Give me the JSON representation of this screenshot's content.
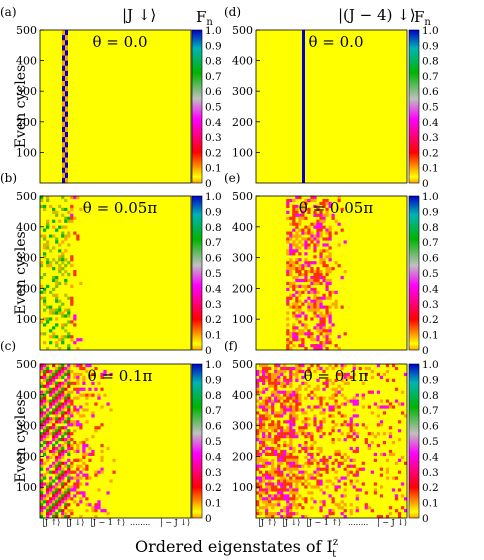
{
  "figure": {
    "xlabel": "Ordered eigenstates of I",
    "xlabel_sup": "z",
    "xlabel_sub": "t",
    "colorbar_label": "F",
    "colorbar_label_sub": "n",
    "left_title": "|J ↓⟩",
    "right_title": "|(J − 4) ↓⟩",
    "colorbar_ticks": [
      "1.0",
      "0.9",
      "0.8",
      "0.7",
      "0.6",
      "0.5",
      "0.4",
      "0.3",
      "0.2",
      "0.1",
      "0"
    ],
    "colorbar_range": [
      0,
      1
    ],
    "colorbar_colors": [
      "#0000c8",
      "#00b400",
      "#ff00ff",
      "#ff0000",
      "#ffa500",
      "#ffff00"
    ],
    "x_category_labels": [
      "|J ↑⟩",
      "|J ↓⟩",
      "|J − 1 ↑⟩",
      "........",
      "| − J ↓⟩"
    ],
    "background_color": "#ffff00"
  },
  "chart_data": [
    {
      "type": "heatmap",
      "panel": "(a)",
      "annotation": "θ = 0.0",
      "ylabel": "Even cycles",
      "ylim": [
        0,
        500
      ],
      "yticks": [
        100,
        200,
        300,
        400,
        500
      ],
      "column": "|J ↓⟩",
      "theta": 0.0
    },
    {
      "type": "heatmap",
      "panel": "(b)",
      "annotation": "θ = 0.05π",
      "ylabel": "Even cycles",
      "ylim": [
        0,
        500
      ],
      "yticks": [
        100,
        200,
        300,
        400,
        500
      ],
      "column": "|J ↓⟩",
      "theta": 0.05
    },
    {
      "type": "heatmap",
      "panel": "(c)",
      "annotation": "θ = 0.1π",
      "ylabel": "Even cycles",
      "ylim": [
        0,
        500
      ],
      "yticks": [
        100,
        200,
        300,
        400,
        500
      ],
      "column": "|J ↓⟩",
      "theta": 0.1
    },
    {
      "type": "heatmap",
      "panel": "(d)",
      "annotation": "θ = 0.0",
      "ylabel": "",
      "ylim": [
        0,
        500
      ],
      "yticks": [
        100,
        200,
        300,
        400,
        500
      ],
      "column": "|(J − 4) ↓⟩",
      "theta": 0.0
    },
    {
      "type": "heatmap",
      "panel": "(e)",
      "annotation": "θ = 0.05π",
      "ylabel": "",
      "ylim": [
        0,
        500
      ],
      "yticks": [
        100,
        200,
        300,
        400,
        500
      ],
      "column": "|(J − 4) ↓⟩",
      "theta": 0.05
    },
    {
      "type": "heatmap",
      "panel": "(f)",
      "annotation": "θ = 0.1π",
      "ylabel": "",
      "ylim": [
        0,
        500
      ],
      "yticks": [
        100,
        200,
        300,
        400,
        500
      ],
      "column": "|(J − 4) ↓⟩",
      "theta": 0.1
    }
  ]
}
